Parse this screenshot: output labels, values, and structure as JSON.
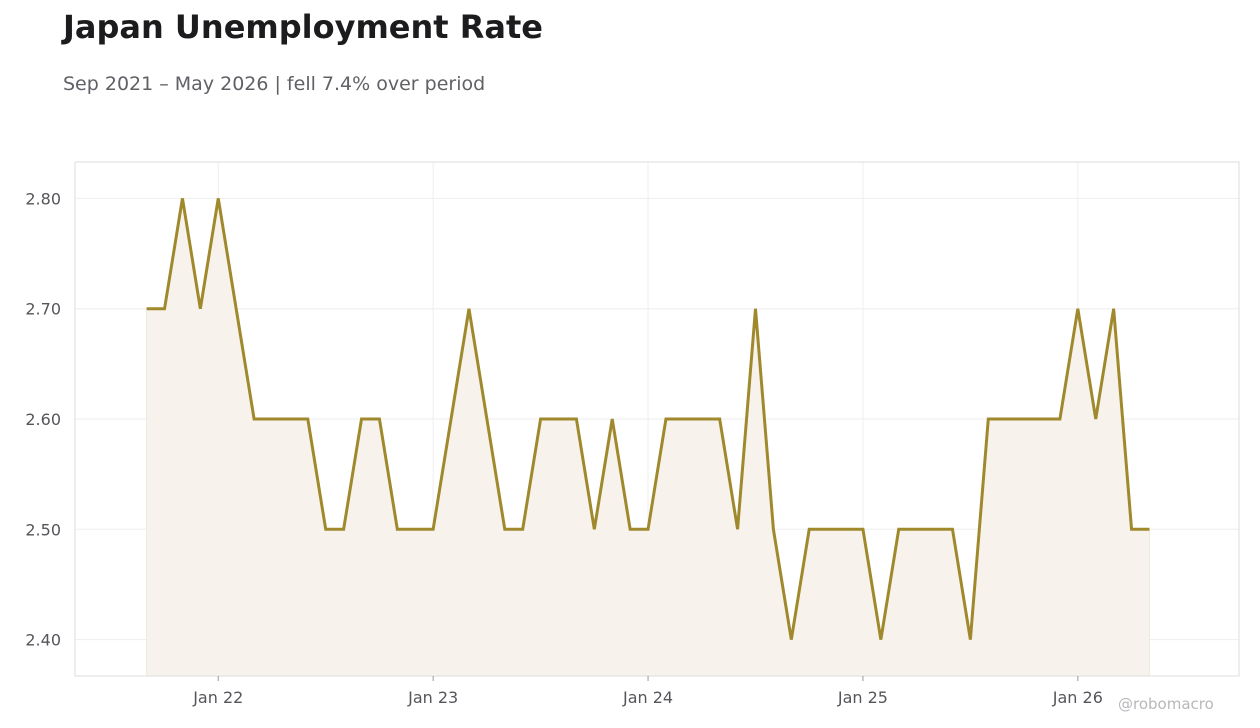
{
  "title": "Japan Unemployment Rate",
  "subtitle": "Sep 2021 – May 2026 | fell 7.4% over period",
  "watermark": "@robomacro",
  "colors": {
    "line": "#a0892c",
    "fill": "#f7f3ec",
    "grid": "#eeeeee",
    "frame": "#dddddd"
  },
  "chart_data": {
    "type": "area",
    "title": "Japan Unemployment Rate",
    "subtitle": "Sep 2021 – May 2026 | fell 7.4% over period",
    "xlabel": "",
    "ylabel": "",
    "x": [
      "2021-09",
      "2021-10",
      "2021-11",
      "2021-12",
      "2022-01",
      "2022-02",
      "2022-03",
      "2022-04",
      "2022-05",
      "2022-06",
      "2022-07",
      "2022-08",
      "2022-09",
      "2022-10",
      "2022-11",
      "2022-12",
      "2023-01",
      "2023-02",
      "2023-03",
      "2023-04",
      "2023-05",
      "2023-06",
      "2023-07",
      "2023-08",
      "2023-09",
      "2023-10",
      "2023-11",
      "2023-12",
      "2024-01",
      "2024-02",
      "2024-03",
      "2024-04",
      "2024-05",
      "2024-06",
      "2024-07",
      "2024-08",
      "2024-09",
      "2024-10",
      "2024-11",
      "2024-12",
      "2025-01",
      "2025-02",
      "2025-03",
      "2025-04",
      "2025-05",
      "2025-06",
      "2025-07",
      "2025-08",
      "2025-09",
      "2025-10",
      "2025-11",
      "2025-12",
      "2026-01",
      "2026-02",
      "2026-03",
      "2026-04",
      "2026-05"
    ],
    "values": [
      2.7,
      2.7,
      2.8,
      2.7,
      2.8,
      2.7,
      2.6,
      2.6,
      2.6,
      2.6,
      2.5,
      2.5,
      2.6,
      2.6,
      2.5,
      2.5,
      2.5,
      2.6,
      2.7,
      2.6,
      2.5,
      2.5,
      2.6,
      2.6,
      2.6,
      2.5,
      2.6,
      2.5,
      2.5,
      2.6,
      2.6,
      2.6,
      2.6,
      2.5,
      2.7,
      2.5,
      2.4,
      2.5,
      2.5,
      2.5,
      2.5,
      2.4,
      2.5,
      2.5,
      2.5,
      2.5,
      2.4,
      2.6,
      2.6,
      2.6,
      2.6,
      2.6,
      2.7,
      2.6,
      2.7,
      2.5,
      2.5
    ],
    "x_ticks": [
      {
        "date": "2022-01",
        "label": "Jan 22"
      },
      {
        "date": "2023-01",
        "label": "Jan 23"
      },
      {
        "date": "2024-01",
        "label": "Jan 24"
      },
      {
        "date": "2025-01",
        "label": "Jan 25"
      },
      {
        "date": "2026-01",
        "label": "Jan 26"
      }
    ],
    "y_ticks": [
      2.4,
      2.5,
      2.6,
      2.7,
      2.8
    ],
    "y_tick_labels": [
      "2.40",
      "2.50",
      "2.60",
      "2.70",
      "2.80"
    ],
    "xlim": [
      "2021-05",
      "2026-10"
    ],
    "ylim": [
      2.367,
      2.833
    ],
    "grid": true,
    "legend": "none"
  }
}
